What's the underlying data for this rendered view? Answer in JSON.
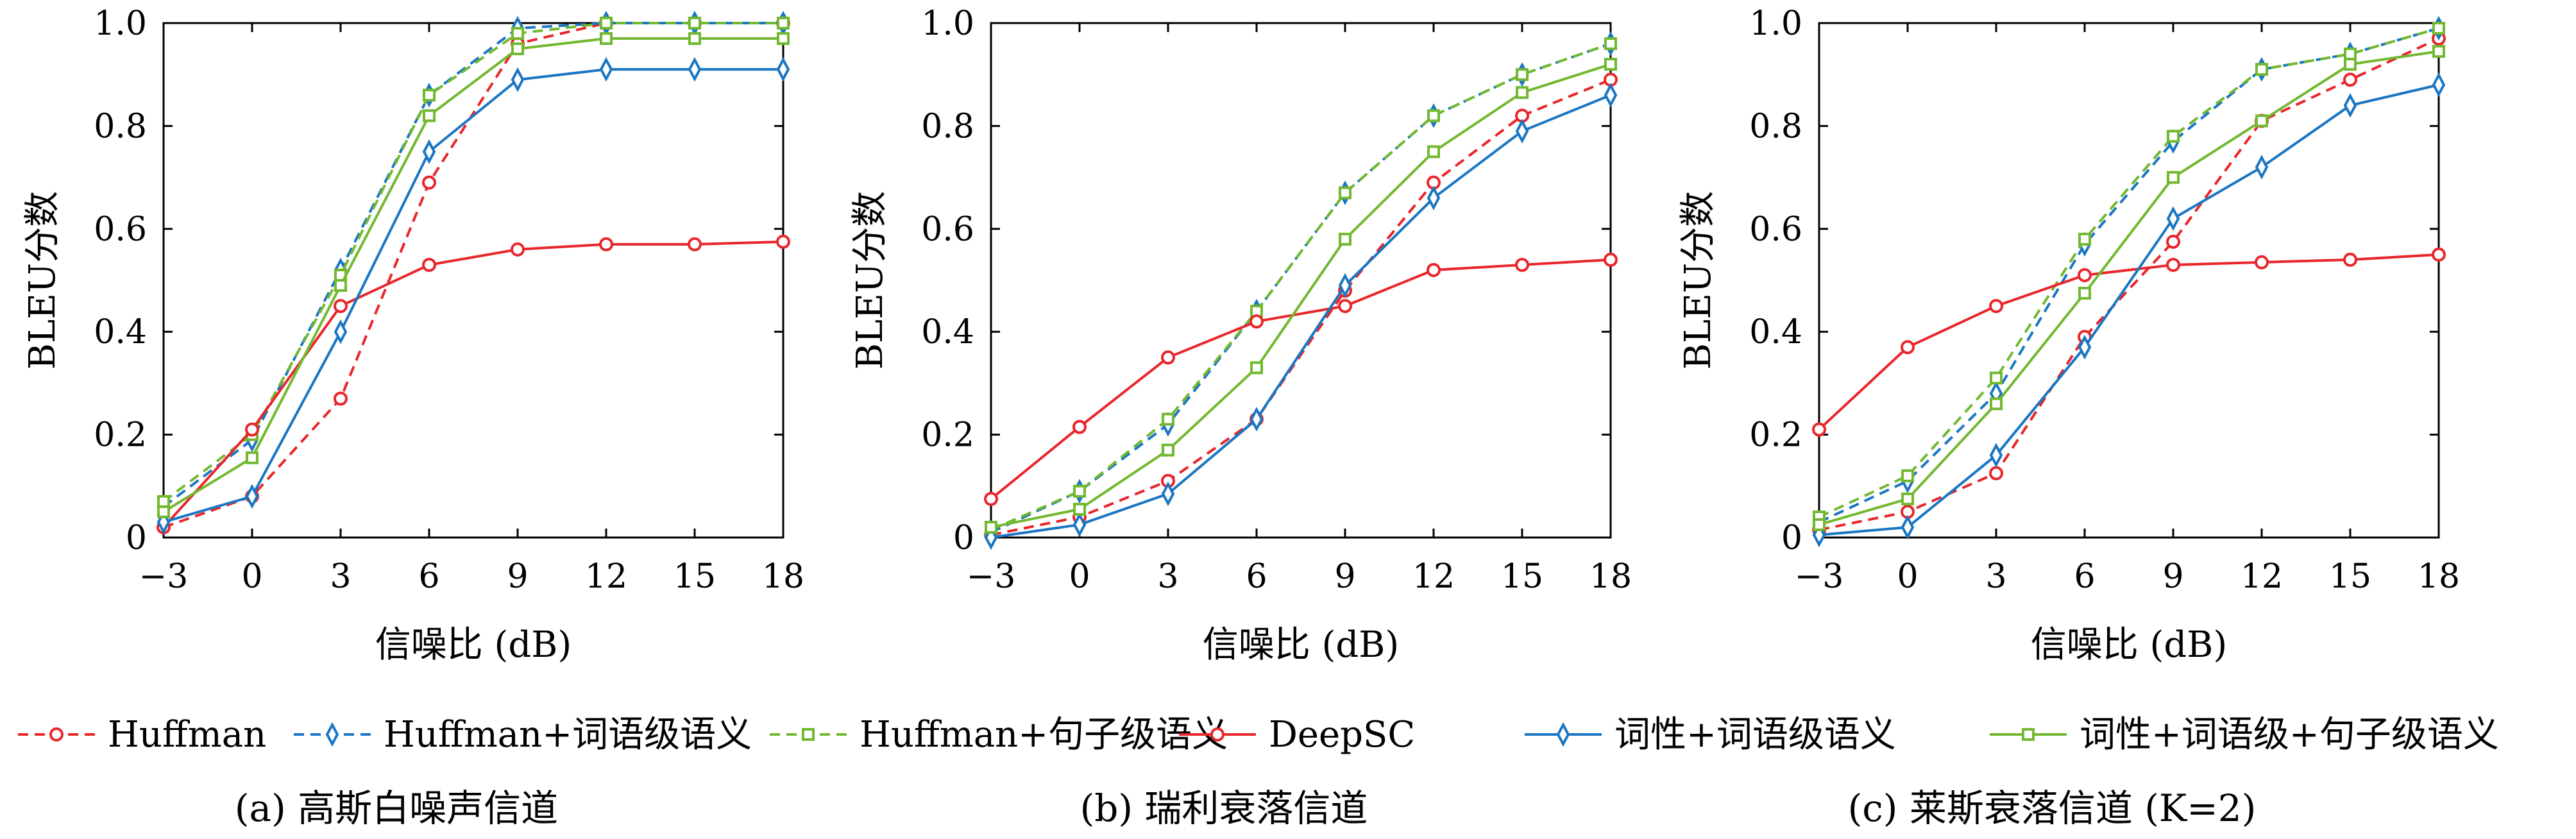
{
  "colors": {
    "Huffman": "#e8262b",
    "Huffman+词语级语义": "#1a76c2",
    "Huffman+句子级语义": "#72b830",
    "DeepSC": "#e8262b",
    "词性+词语级语义": "#1a76c2",
    "词性+词语级+句子级语义": "#72b830"
  },
  "legend": [
    {
      "name": "Huffman",
      "dash": true,
      "marker": "circle"
    },
    {
      "name": "Huffman+词语级语义",
      "dash": true,
      "marker": "diamond"
    },
    {
      "name": "Huffman+句子级语义",
      "dash": true,
      "marker": "square"
    },
    {
      "name": "DeepSC",
      "dash": false,
      "marker": "circle"
    },
    {
      "name": "词性+词语级语义",
      "dash": false,
      "marker": "diamond"
    },
    {
      "name": "词性+词语级+句子级语义",
      "dash": false,
      "marker": "square"
    }
  ],
  "chart_data": [
    {
      "type": "line",
      "caption": "(a) 高斯白噪声信道",
      "xlabel": "信噪比 (dB)",
      "ylabel": "BLEU分数",
      "x": [
        -3,
        0,
        3,
        6,
        9,
        12,
        15,
        18
      ],
      "x_tick_labels": [
        "−3",
        "0",
        "3",
        "6",
        "9",
        "12",
        "15",
        "18"
      ],
      "y_tick_labels": [
        "0",
        "0.2",
        "0.4",
        "0.6",
        "0.8",
        "1.0"
      ],
      "y_ticks": [
        0,
        0.2,
        0.4,
        0.6,
        0.8,
        1.0
      ],
      "xlim": [
        -3,
        18
      ],
      "ylim": [
        0,
        1.0
      ],
      "series": [
        {
          "name": "Huffman",
          "values": [
            0.02,
            0.08,
            0.27,
            0.69,
            0.96,
            1.0,
            1.0,
            1.0
          ]
        },
        {
          "name": "Huffman+词语级语义",
          "values": [
            0.06,
            0.19,
            0.52,
            0.86,
            0.99,
            1.0,
            1.0,
            1.0
          ]
        },
        {
          "name": "Huffman+句子级语义",
          "values": [
            0.07,
            0.2,
            0.51,
            0.86,
            0.98,
            1.0,
            1.0,
            1.0
          ]
        },
        {
          "name": "DeepSC",
          "values": [
            0.02,
            0.21,
            0.45,
            0.53,
            0.56,
            0.57,
            0.57,
            0.575
          ]
        },
        {
          "name": "词性+词语级语义",
          "values": [
            0.03,
            0.08,
            0.4,
            0.75,
            0.89,
            0.91,
            0.91,
            0.91
          ]
        },
        {
          "name": "词性+词语级+句子级语义",
          "values": [
            0.05,
            0.155,
            0.49,
            0.82,
            0.95,
            0.97,
            0.97,
            0.97
          ]
        }
      ]
    },
    {
      "type": "line",
      "caption": "(b) 瑞利衰落信道",
      "xlabel": "信噪比 (dB)",
      "ylabel": "BLEU分数",
      "x": [
        -3,
        0,
        3,
        6,
        9,
        12,
        15,
        18
      ],
      "x_tick_labels": [
        "−3",
        "0",
        "3",
        "6",
        "9",
        "12",
        "15",
        "18"
      ],
      "y_tick_labels": [
        "0",
        "0.2",
        "0.4",
        "0.6",
        "0.8",
        "1.0"
      ],
      "y_ticks": [
        0,
        0.2,
        0.4,
        0.6,
        0.8,
        1.0
      ],
      "xlim": [
        -3,
        18
      ],
      "ylim": [
        0,
        1.0
      ],
      "series": [
        {
          "name": "Huffman",
          "values": [
            0.005,
            0.04,
            0.11,
            0.23,
            0.48,
            0.69,
            0.82,
            0.89
          ]
        },
        {
          "name": "Huffman+词语级语义",
          "values": [
            0.01,
            0.09,
            0.22,
            0.44,
            0.67,
            0.82,
            0.9,
            0.96
          ]
        },
        {
          "name": "Huffman+句子级语义",
          "values": [
            0.015,
            0.09,
            0.23,
            0.44,
            0.67,
            0.82,
            0.9,
            0.96
          ]
        },
        {
          "name": "DeepSC",
          "values": [
            0.075,
            0.215,
            0.35,
            0.42,
            0.45,
            0.52,
            0.53,
            0.54
          ]
        },
        {
          "name": "词性+词语级语义",
          "values": [
            0.0,
            0.025,
            0.085,
            0.23,
            0.49,
            0.66,
            0.79,
            0.86
          ]
        },
        {
          "name": "词性+词语级+句子级语义",
          "values": [
            0.02,
            0.055,
            0.17,
            0.33,
            0.58,
            0.75,
            0.865,
            0.92
          ]
        }
      ]
    },
    {
      "type": "line",
      "caption": "(c) 莱斯衰落信道 (K=2)",
      "xlabel": "信噪比 (dB)",
      "ylabel": "BLEU分数",
      "x": [
        -3,
        0,
        3,
        6,
        9,
        12,
        15,
        18
      ],
      "x_tick_labels": [
        "−3",
        "0",
        "3",
        "6",
        "9",
        "12",
        "15",
        "18"
      ],
      "y_tick_labels": [
        "0",
        "0.2",
        "0.4",
        "0.6",
        "0.8",
        "1.0"
      ],
      "y_ticks": [
        0,
        0.2,
        0.4,
        0.6,
        0.8,
        1.0
      ],
      "xlim": [
        -3,
        18
      ],
      "ylim": [
        0,
        1.0
      ],
      "series": [
        {
          "name": "Huffman",
          "values": [
            0.015,
            0.05,
            0.125,
            0.39,
            0.575,
            0.81,
            0.89,
            0.97
          ]
        },
        {
          "name": "Huffman+词语级语义",
          "values": [
            0.03,
            0.11,
            0.28,
            0.57,
            0.77,
            0.91,
            0.94,
            0.99
          ]
        },
        {
          "name": "Huffman+句子级语义",
          "values": [
            0.04,
            0.12,
            0.31,
            0.58,
            0.78,
            0.91,
            0.94,
            0.99
          ]
        },
        {
          "name": "DeepSC",
          "values": [
            0.21,
            0.37,
            0.45,
            0.51,
            0.53,
            0.535,
            0.54,
            0.55
          ]
        },
        {
          "name": "词性+词语级语义",
          "values": [
            0.005,
            0.02,
            0.16,
            0.37,
            0.62,
            0.72,
            0.84,
            0.88
          ]
        },
        {
          "name": "词性+词语级+句子级语义",
          "values": [
            0.025,
            0.075,
            0.26,
            0.475,
            0.7,
            0.81,
            0.92,
            0.945
          ]
        }
      ]
    }
  ]
}
